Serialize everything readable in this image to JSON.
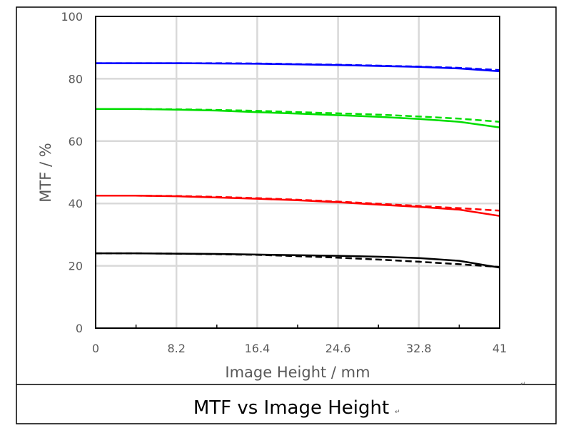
{
  "chart_data": {
    "type": "line",
    "title": "",
    "xlabel": "Image Height / mm",
    "ylabel": "MTF / %",
    "xlim": [
      0,
      41
    ],
    "ylim": [
      0,
      100
    ],
    "x_ticks": [
      "0",
      "8.2",
      "16.4",
      "24.6",
      "32.8",
      "41"
    ],
    "y_ticks": [
      "0",
      "20",
      "40",
      "60",
      "80",
      "100"
    ],
    "grid": true,
    "legend": "none",
    "series": [
      {
        "color": "#0000ff",
        "style": "solid",
        "x": [
          0,
          4,
          8.2,
          12.3,
          16.4,
          20.5,
          24.6,
          28.7,
          32.8,
          36.9,
          41
        ],
        "y": [
          85.0,
          85.0,
          85.0,
          84.9,
          84.8,
          84.6,
          84.4,
          84.1,
          83.8,
          83.3,
          82.4
        ]
      },
      {
        "color": "#0000ff",
        "style": "dashed",
        "x": [
          0,
          4,
          8.2,
          12.3,
          16.4,
          20.5,
          24.6,
          28.7,
          32.8,
          36.9,
          41
        ],
        "y": [
          85.0,
          85.0,
          85.0,
          85.0,
          84.9,
          84.7,
          84.5,
          84.2,
          83.9,
          83.5,
          82.8
        ]
      },
      {
        "color": "#00dd00",
        "style": "solid",
        "x": [
          0,
          4,
          8.2,
          12.3,
          16.4,
          20.5,
          24.6,
          28.7,
          32.8,
          36.9,
          41
        ],
        "y": [
          70.3,
          70.3,
          70.1,
          69.8,
          69.3,
          68.8,
          68.3,
          67.8,
          67.1,
          66.2,
          64.4
        ]
      },
      {
        "color": "#00dd00",
        "style": "dashed",
        "x": [
          0,
          4,
          8.2,
          12.3,
          16.4,
          20.5,
          24.6,
          28.7,
          32.8,
          36.9,
          41
        ],
        "y": [
          70.3,
          70.3,
          70.2,
          70.0,
          69.7,
          69.3,
          68.9,
          68.5,
          67.9,
          67.2,
          66.2
        ]
      },
      {
        "color": "#ff0000",
        "style": "solid",
        "x": [
          0,
          4,
          8.2,
          12.3,
          16.4,
          20.5,
          24.6,
          28.7,
          32.8,
          36.9,
          41
        ],
        "y": [
          42.5,
          42.5,
          42.3,
          41.9,
          41.5,
          41.0,
          40.4,
          39.6,
          38.9,
          38.0,
          36.0
        ]
      },
      {
        "color": "#ff0000",
        "style": "dashed",
        "x": [
          0,
          4,
          8.2,
          12.3,
          16.4,
          20.5,
          24.6,
          28.7,
          32.8,
          36.9,
          41
        ],
        "y": [
          42.5,
          42.5,
          42.4,
          42.1,
          41.7,
          41.2,
          40.6,
          39.9,
          39.2,
          38.5,
          37.7
        ]
      },
      {
        "color": "#000000",
        "style": "solid",
        "x": [
          0,
          4,
          8.2,
          12.3,
          16.4,
          20.5,
          24.6,
          28.7,
          32.8,
          36.9,
          41
        ],
        "y": [
          24.0,
          24.0,
          23.9,
          23.8,
          23.6,
          23.4,
          23.2,
          22.9,
          22.5,
          21.6,
          19.4
        ]
      },
      {
        "color": "#000000",
        "style": "dashed",
        "x": [
          0,
          4,
          8.2,
          12.3,
          16.4,
          20.5,
          24.6,
          28.7,
          32.8,
          36.9,
          41
        ],
        "y": [
          24.0,
          24.0,
          23.9,
          23.7,
          23.5,
          23.1,
          22.6,
          22.0,
          21.3,
          20.5,
          19.6
        ]
      }
    ]
  },
  "caption": {
    "text": "MTF vs Image Height",
    "mark": "↵"
  },
  "stray_mark": "↵"
}
